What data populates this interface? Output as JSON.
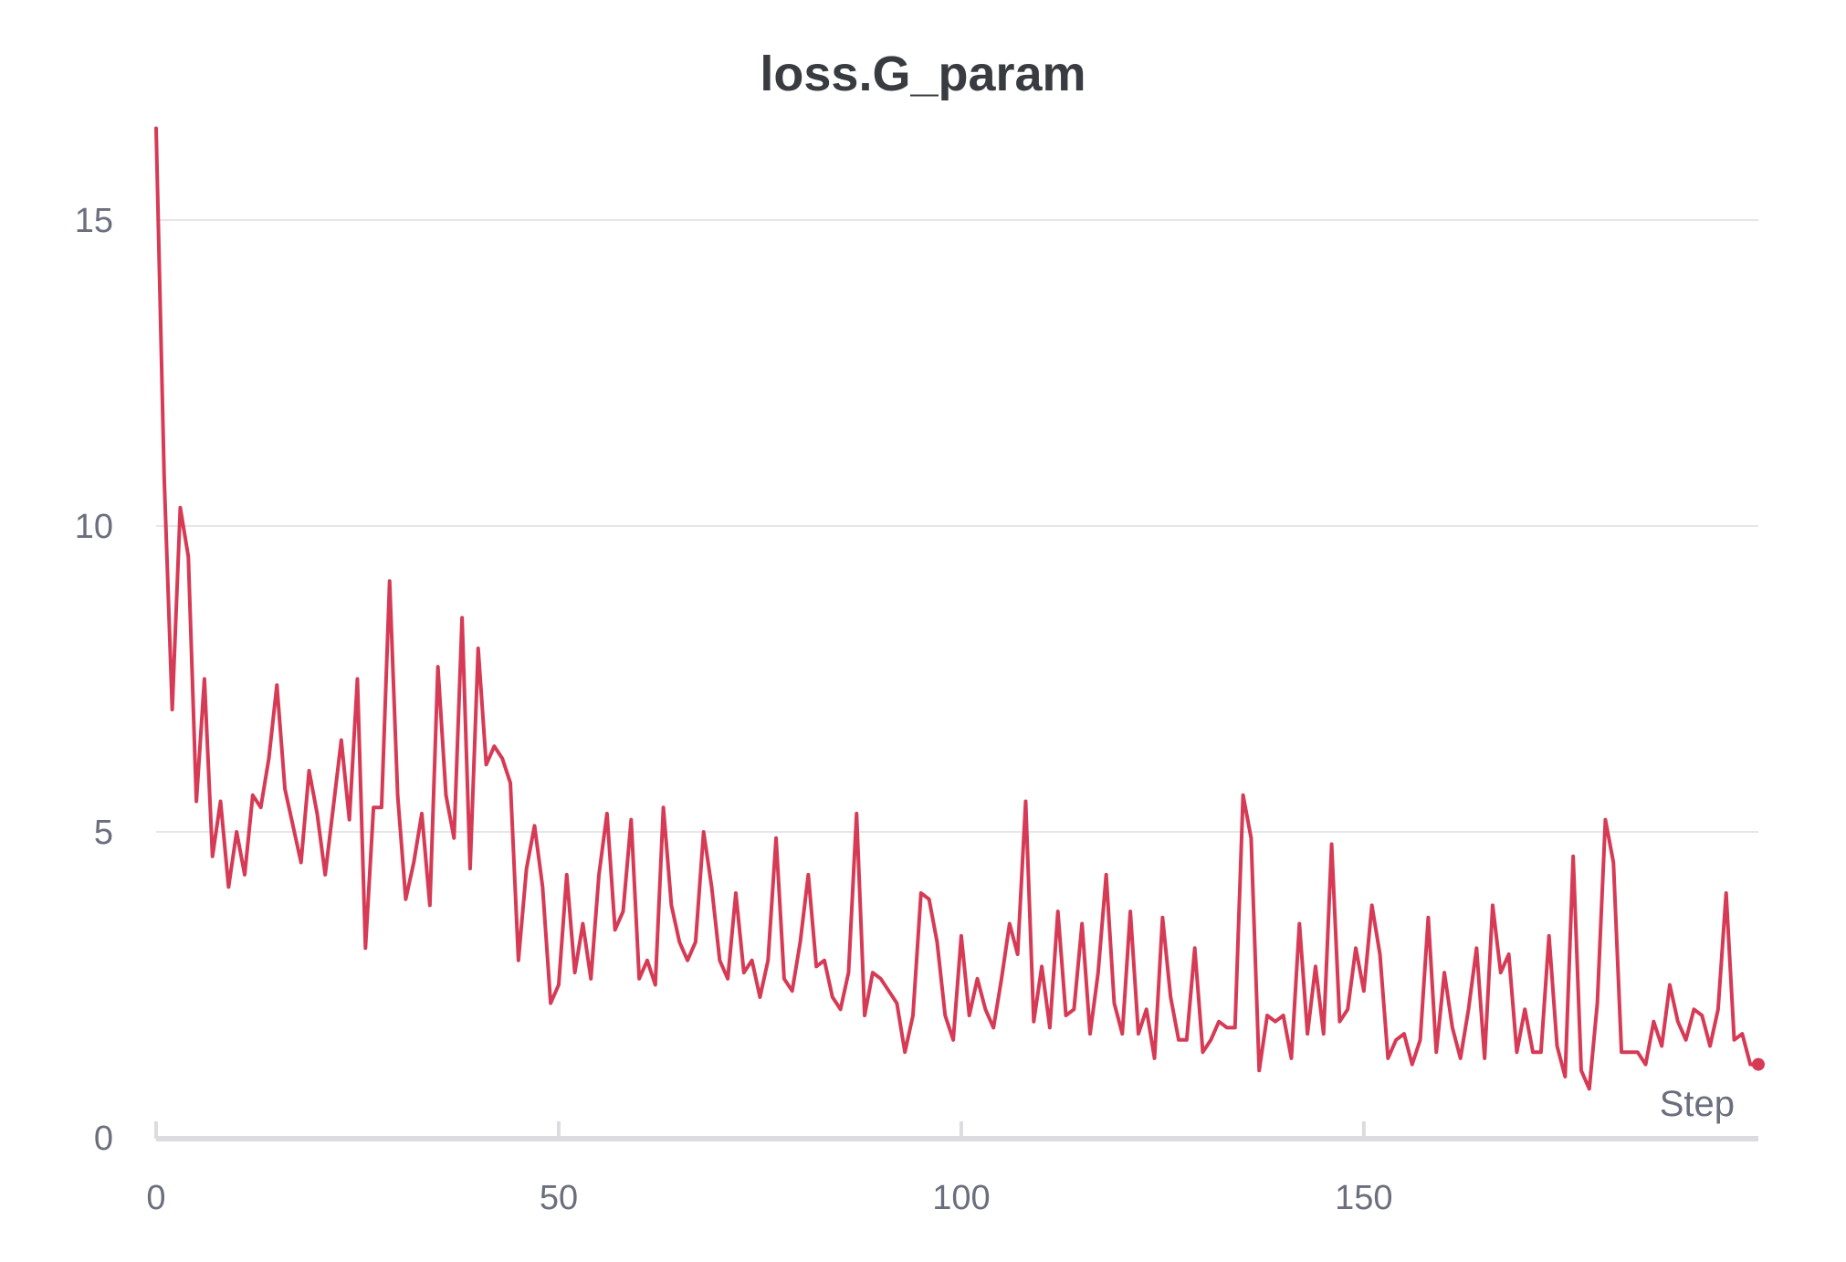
{
  "chart_data": {
    "type": "line",
    "title": "loss.G_param",
    "xlabel": "Step",
    "ylabel": "",
    "xlim": [
      0,
      199
    ],
    "ylim": [
      0,
      16.5
    ],
    "x_ticks": [
      0,
      50,
      100,
      150
    ],
    "y_ticks": [
      0,
      5,
      10,
      15
    ],
    "grid": true,
    "legend": "none",
    "series": [
      {
        "color": "#d63a55",
        "x": [
          0,
          1,
          2,
          3,
          4,
          5,
          6,
          7,
          8,
          9,
          10,
          11,
          12,
          13,
          14,
          15,
          16,
          17,
          18,
          19,
          20,
          21,
          22,
          23,
          24,
          25,
          26,
          27,
          28,
          29,
          30,
          31,
          32,
          33,
          34,
          35,
          36,
          37,
          38,
          39,
          40,
          41,
          42,
          43,
          44,
          45,
          46,
          47,
          48,
          49,
          50,
          51,
          52,
          53,
          54,
          55,
          56,
          57,
          58,
          59,
          60,
          61,
          62,
          63,
          64,
          65,
          66,
          67,
          68,
          69,
          70,
          71,
          72,
          73,
          74,
          75,
          76,
          77,
          78,
          79,
          80,
          81,
          82,
          83,
          84,
          85,
          86,
          87,
          88,
          89,
          90,
          91,
          92,
          93,
          94,
          95,
          96,
          97,
          98,
          99,
          100,
          101,
          102,
          103,
          104,
          105,
          106,
          107,
          108,
          109,
          110,
          111,
          112,
          113,
          114,
          115,
          116,
          117,
          118,
          119,
          120,
          121,
          122,
          123,
          124,
          125,
          126,
          127,
          128,
          129,
          130,
          131,
          132,
          133,
          134,
          135,
          136,
          137,
          138,
          139,
          140,
          141,
          142,
          143,
          144,
          145,
          146,
          147,
          148,
          149,
          150,
          151,
          152,
          153,
          154,
          155,
          156,
          157,
          158,
          159,
          160,
          161,
          162,
          163,
          164,
          165,
          166,
          167,
          168,
          169,
          170,
          171,
          172,
          173,
          174,
          175,
          176,
          177,
          178,
          179,
          180,
          181,
          182,
          183,
          184,
          185,
          186,
          187,
          188,
          189,
          190,
          191,
          192,
          193,
          194,
          195,
          196,
          197,
          198,
          199
        ],
        "y": [
          16.5,
          10.8,
          7.0,
          10.3,
          9.5,
          5.5,
          7.5,
          4.6,
          5.5,
          4.1,
          5.0,
          4.3,
          5.6,
          5.4,
          6.2,
          7.4,
          5.7,
          5.1,
          4.5,
          6.0,
          5.3,
          4.3,
          5.4,
          6.5,
          5.2,
          7.5,
          3.1,
          5.4,
          5.4,
          9.1,
          5.6,
          3.9,
          4.5,
          5.3,
          3.8,
          7.7,
          5.6,
          4.9,
          8.5,
          4.4,
          8.0,
          6.1,
          6.4,
          6.2,
          5.8,
          2.9,
          4.4,
          5.1,
          4.1,
          2.2,
          2.5,
          4.3,
          2.7,
          3.5,
          2.6,
          4.3,
          5.3,
          3.4,
          3.7,
          5.2,
          2.6,
          2.9,
          2.5,
          5.4,
          3.8,
          3.2,
          2.9,
          3.2,
          5.0,
          4.1,
          2.9,
          2.6,
          4.0,
          2.7,
          2.9,
          2.3,
          2.9,
          4.9,
          2.6,
          2.4,
          3.2,
          4.3,
          2.8,
          2.9,
          2.3,
          2.1,
          2.7,
          5.3,
          2.0,
          2.7,
          2.6,
          2.4,
          2.2,
          1.4,
          2.0,
          4.0,
          3.9,
          3.2,
          2.0,
          1.6,
          3.3,
          2.0,
          2.6,
          2.1,
          1.8,
          2.6,
          3.5,
          3.0,
          5.5,
          1.9,
          2.8,
          1.8,
          3.7,
          2.0,
          2.1,
          3.5,
          1.7,
          2.7,
          4.3,
          2.2,
          1.7,
          3.7,
          1.7,
          2.1,
          1.3,
          3.6,
          2.3,
          1.6,
          1.6,
          3.1,
          1.4,
          1.6,
          1.9,
          1.8,
          1.8,
          5.6,
          4.9,
          1.1,
          2.0,
          1.9,
          2.0,
          1.3,
          3.5,
          1.7,
          2.8,
          1.7,
          4.8,
          1.9,
          2.1,
          3.1,
          2.4,
          3.8,
          3.0,
          1.3,
          1.6,
          1.7,
          1.2,
          1.6,
          3.6,
          1.4,
          2.7,
          1.8,
          1.3,
          2.1,
          3.1,
          1.3,
          3.8,
          2.7,
          3.0,
          1.4,
          2.1,
          1.4,
          1.4,
          3.3,
          1.5,
          1.0,
          4.6,
          1.1,
          0.8,
          2.2,
          5.2,
          4.5,
          1.4,
          1.4,
          1.4,
          1.2,
          1.9,
          1.5,
          2.5,
          1.9,
          1.6,
          2.1,
          2.0,
          1.5,
          2.1,
          4.0,
          1.6,
          1.7,
          1.2,
          1.2
        ]
      }
    ]
  }
}
